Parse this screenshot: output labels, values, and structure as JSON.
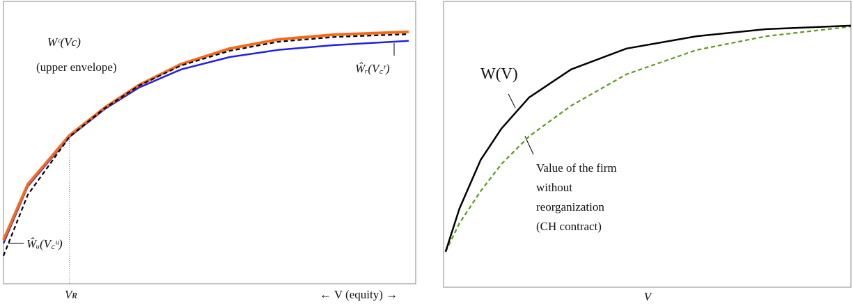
{
  "chart_data": [
    {
      "type": "line",
      "xlim": [
        0,
        100
      ],
      "ylim": [
        0,
        100
      ],
      "xlabel": "← V (equity) →",
      "annotations": [
        "(upper envelope)",
        "Vʀ"
      ],
      "vline": 16.0,
      "x": [
        0,
        5.9,
        16.0,
        24.5,
        32.9,
        43.1,
        54.9,
        66.6,
        80.2,
        98.3
      ],
      "series": [
        {
          "name": "Ŵᵣ(V꜀ʳ)",
          "color": "#2020e0",
          "dashed": false,
          "values": [
            14.3,
            34.5,
            52.0,
            61.8,
            69.5,
            75.9,
            80.3,
            82.8,
            84.5,
            86.0
          ]
        },
        {
          "name": "Wᶜ(Vc)",
          "color": "#f26b1d",
          "dashed": false,
          "values": [
            15.5,
            35.2,
            52.5,
            62.3,
            70.4,
            77.8,
            83.3,
            86.5,
            88.2,
            89.2
          ]
        },
        {
          "name": "Ŵᵤ(V꜀ᵘ)",
          "color": "#000000",
          "dashed": true,
          "values": [
            9.9,
            31.5,
            52.0,
            62.1,
            70.2,
            77.3,
            82.5,
            85.7,
            87.4,
            88.4
          ]
        }
      ]
    },
    {
      "type": "line",
      "xlim": [
        0,
        100
      ],
      "ylim": [
        0,
        100
      ],
      "xlabel": "V",
      "x": [
        0.5,
        3.9,
        9.1,
        14.2,
        21.0,
        31.3,
        44.9,
        62.1,
        79.2,
        100
      ],
      "series": [
        {
          "name": "Value of the firm without reorganization (CH contract)",
          "color": "#5a9a1a",
          "dashed": true,
          "values": [
            12.4,
            22.4,
            33.6,
            43.1,
            52.8,
            63.5,
            74.5,
            83.0,
            87.8,
            91.2
          ]
        },
        {
          "name": "W(V)",
          "color": "#000000",
          "dashed": false,
          "values": [
            12.4,
            27.5,
            44.5,
            55.5,
            66.4,
            76.2,
            83.5,
            87.8,
            90.3,
            91.5
          ]
        }
      ]
    }
  ]
}
